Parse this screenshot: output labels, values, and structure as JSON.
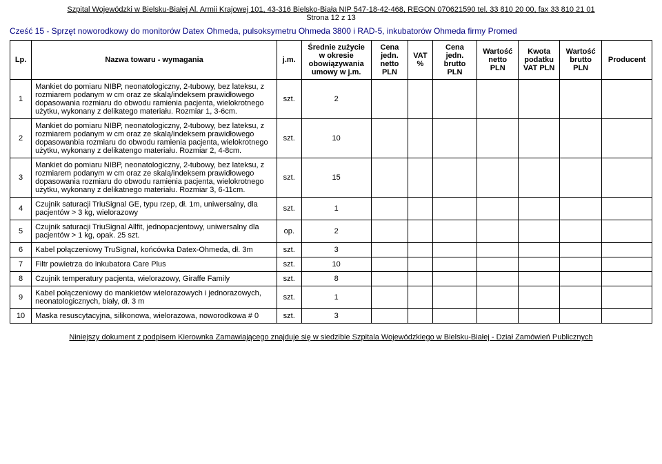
{
  "header": {
    "line1": "Szpital Wojewódzki w Bielsku-Białej Al. Armii Krajowej 101, 43-316 Bielsko-Biała NIP 547-18-42-468, REGON 070621590 tel. 33 810 20 00, fax 33 810 21 01",
    "page": "Strona 12 z 13"
  },
  "section_title": "Cześć 15 - Sprzęt noworodkowy do monitorów Datex Ohmeda, pulsoksymetru Ohmeda 3800 i RAD-5, inkubatorów Ohmeda firmy Promed",
  "columns": {
    "lp": "Lp.",
    "name": "Nazwa towaru - wymagania",
    "jm": "j.m.",
    "qty": "Średnie zużycie w okresie obowiązywania umowy w j.m.",
    "cena_netto": "Cena jedn. netto PLN",
    "vat": "VAT %",
    "cena_brutto": "Cena jedn. brutto PLN",
    "wart_netto": "Wartość netto PLN",
    "kwota_vat": "Kwota podatku VAT PLN",
    "wart_brutto": "Wartość brutto PLN",
    "producent": "Producent"
  },
  "rows": [
    {
      "lp": "1",
      "name": "Mankiet do pomiaru NIBP, neonatologiczny, 2-tubowy, bez lateksu, z rozmiarem podanym w cm oraz ze skalą/indeksem prawidłowego dopasowania rozmiaru do obwodu ramienia pacjenta, wielokrotnego użytku, wykonany z delikatego materiału. Rozmiar 1, 3-6cm.",
      "jm": "szt.",
      "qty": "2"
    },
    {
      "lp": "2",
      "name": "Mankiet do pomiaru NIBP, neonatologiczny, 2-tubowy, bez lateksu, z rozmiarem podanym w cm oraz ze skalą/indeksem prawidłowego dopasowanbia rozmiaru do obwodu ramienia pacjenta, wielokrotnego użytku, wykonany z delikatengo materiału. Rozmiar 2, 4-8cm.",
      "jm": "szt.",
      "qty": "10"
    },
    {
      "lp": "3",
      "name": "Mankiet do pomiaru NIBP, neonatologiczny,  2-tubowy, bez lateksu, z rozmiarem podanym w cm oraz ze skalą/indeksem prawidłowego dopasowania rozmiaru do obwodu ramienia pacjenta, wielokrotnego użytku, wykonany z delikatnego materiału. Rozmiar 3, 6-11cm.",
      "jm": "szt.",
      "qty": "15"
    },
    {
      "lp": "4",
      "name": "Czujnik saturacji TriuSignal GE, typu rzep, dł. 1m, uniwersalny, dla pacjentów > 3 kg, wielorazowy",
      "jm": "szt.",
      "qty": "1"
    },
    {
      "lp": "5",
      "name": "Czujnik saturacji TriuSignal Allfit, jednopacjentowy, uniwersalny dla pacjentów > 1 kg, opak. 25 szt.",
      "jm": "op.",
      "qty": "2"
    },
    {
      "lp": "6",
      "name": "Kabel połączeniowy TruSignal, końcówka Datex-Ohmeda, dł. 3m",
      "jm": "szt.",
      "qty": "3"
    },
    {
      "lp": "7",
      "name": "Filtr powietrza do inkubatora Care Plus",
      "jm": "szt.",
      "qty": "10"
    },
    {
      "lp": "8",
      "name": "Czujnik temperatury pacjenta, wielorazowy, Giraffe Family",
      "jm": "szt.",
      "qty": "8"
    },
    {
      "lp": "9",
      "name": "Kabel połączeniowy do mankietów wielorazowych i jednorazowych, neonatologicznych, biały, dł. 3 m",
      "jm": "szt.",
      "qty": "1"
    },
    {
      "lp": "10",
      "name": "Maska resuscytacyjna, silikonowa, wielorazowa, noworodkowa # 0",
      "jm": "szt.",
      "qty": "3"
    }
  ],
  "footer": "Niniejszy dokument z podpisem Kierownka Zamawiającego znajduje się w siedzibie Szpitala Wojewódzkiego w Bielsku-Białej - Dział Zamówień Publicznych"
}
